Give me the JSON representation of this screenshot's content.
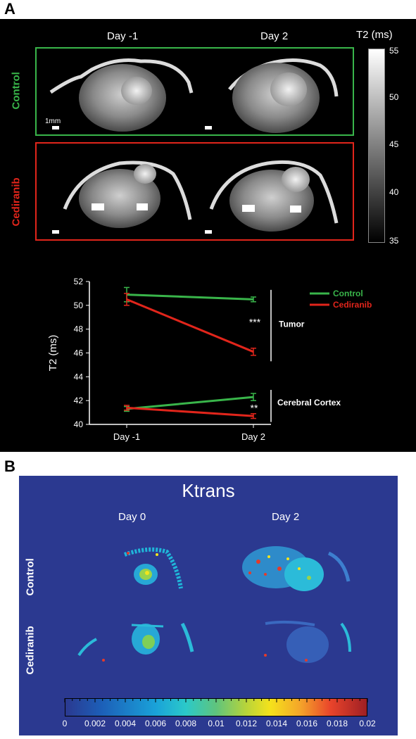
{
  "panel_a": {
    "label": "A",
    "col_headers": [
      "Day -1",
      "Day 2"
    ],
    "rows": [
      {
        "label": "Control",
        "color": "#39b54a"
      },
      {
        "label": "Cediranib",
        "color": "#e1251b"
      }
    ],
    "scale_bar_label": "1mm",
    "colorbar": {
      "title": "T2 (ms)",
      "ticks": [
        "55",
        "50",
        "45",
        "40",
        "35"
      ]
    }
  },
  "panel_b": {
    "label": "B",
    "title": "Ktrans",
    "col_headers": [
      "Day 0",
      "Day 2"
    ],
    "rows": [
      "Control",
      "Cediranib"
    ],
    "colorbar_ticks": [
      "0",
      "0.002",
      "0.004",
      "0.006",
      "0.008",
      "0.01",
      "0.012",
      "0.014",
      "0.016",
      "0.018",
      "0.02"
    ]
  },
  "chart_data": {
    "type": "line",
    "x": [
      "Day -1",
      "Day 2"
    ],
    "ylabel": "T2 (ms)",
    "ylim": [
      40,
      52
    ],
    "yticks": [
      40,
      42,
      44,
      46,
      48,
      50,
      52
    ],
    "legend": [
      "Control",
      "Cediranib"
    ],
    "series": [
      {
        "name": "Control",
        "group": "Tumor",
        "color": "#39b54a",
        "values": [
          50.9,
          50.5
        ],
        "err": [
          0.6,
          0.2
        ]
      },
      {
        "name": "Cediranib",
        "group": "Tumor",
        "color": "#e1251b",
        "values": [
          50.5,
          46.1
        ],
        "err": [
          0.5,
          0.3
        ]
      },
      {
        "name": "Control",
        "group": "Cerebral Cortex",
        "color": "#39b54a",
        "values": [
          41.3,
          42.3
        ],
        "err": [
          0.2,
          0.3
        ]
      },
      {
        "name": "Cediranib",
        "group": "Cerebral Cortex",
        "color": "#e1251b",
        "values": [
          41.4,
          40.7
        ],
        "err": [
          0.2,
          0.2
        ]
      }
    ],
    "annotations": [
      {
        "text": "***",
        "group": "Tumor"
      },
      {
        "text": "**",
        "group": "Cerebral Cortex"
      }
    ],
    "group_labels": [
      "Tumor",
      "Cerebral Cortex"
    ]
  }
}
